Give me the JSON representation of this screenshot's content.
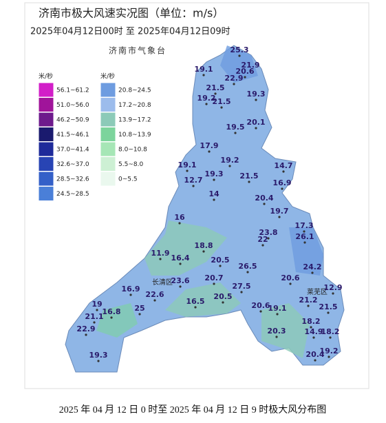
{
  "header": {
    "title": "济南市极大风速实况图（单位：m/s）",
    "time_range": "2025年04月12日00时  至  2025年04月12日09时",
    "agency": "济南市气象台"
  },
  "legend": {
    "left": {
      "unit": "米/秒",
      "items": [
        {
          "label": "56.1~61.2",
          "color": "#d21ec8"
        },
        {
          "label": "51.0~56.0",
          "color": "#a0149a"
        },
        {
          "label": "46.2~50.9",
          "color": "#6e1a8c"
        },
        {
          "label": "41.5~46.1",
          "color": "#1a1a6e"
        },
        {
          "label": "37.0~41.4",
          "color": "#1e2a9a"
        },
        {
          "label": "32.6~37.0",
          "color": "#2844b4"
        },
        {
          "label": "28.5~32.6",
          "color": "#3460c8"
        },
        {
          "label": "24.5~28.5",
          "color": "#4a7fd8"
        }
      ]
    },
    "right": {
      "unit": "米/秒",
      "items": [
        {
          "label": "20.8~24.5",
          "color": "#6e9ce0"
        },
        {
          "label": "17.2~20.8",
          "color": "#9cbcec"
        },
        {
          "label": "13.9~17.2",
          "color": "#8ccab8"
        },
        {
          "label": "10.8~13.9",
          "color": "#7cd49c"
        },
        {
          "label": "8.0~10.8",
          "color": "#a6e6b6"
        },
        {
          "label": "5.5~8.0",
          "color": "#cdf0d4"
        },
        {
          "label": "0~5.5",
          "color": "#eaf8ee"
        }
      ]
    }
  },
  "stations": [
    25.3,
    21.9,
    19.1,
    20.6,
    22.9,
    21.5,
    19.3,
    19.2,
    21.5,
    20.1,
    19.5,
    17.9,
    19.2,
    19.1,
    19.3,
    21.5,
    14.7,
    16.9,
    12.7,
    14,
    20.4,
    19.7,
    16,
    17.3,
    23.8,
    26.1,
    22.0,
    18.8,
    11.9,
    16.4,
    20.5,
    26.5,
    24.2,
    20.7,
    20.6,
    23.6,
    27.5,
    16.9,
    22.6,
    20.5,
    12.9,
    21.2,
    16.5,
    20.6,
    19.1,
    21.5,
    19,
    25,
    16.8,
    21.1,
    22.9,
    18.2,
    20.3,
    14.9,
    18.2,
    19.3,
    20.4,
    19.2
  ],
  "places": [
    "长清区",
    "莱芜区"
  ],
  "caption": "2025 年 04 月 12 日 0 时至 2025 年 04 月 12 日 9 时极大风分布图"
}
